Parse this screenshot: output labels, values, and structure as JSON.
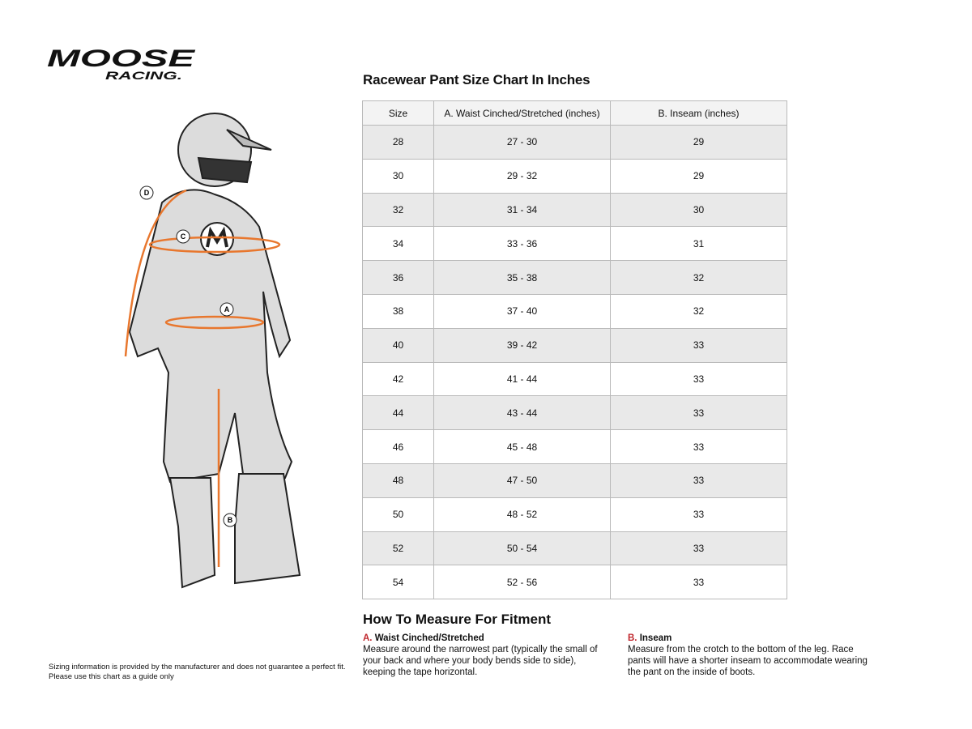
{
  "brand": {
    "logo_text": "MOOSE",
    "logo_subtext": "RACING."
  },
  "figure": {
    "markers": [
      "A",
      "B",
      "C",
      "D"
    ],
    "accent": "#e8772e"
  },
  "title": "Racewear Pant Size Chart In Inches",
  "table": {
    "headers": [
      "Size",
      "A. Waist Cinched/Stretched (inches)",
      "B. Inseam (inches)"
    ],
    "rows": [
      [
        "28",
        "27 - 30",
        "29"
      ],
      [
        "30",
        "29 - 32",
        "29"
      ],
      [
        "32",
        "31 - 34",
        "30"
      ],
      [
        "34",
        "33 - 36",
        "31"
      ],
      [
        "36",
        "35 - 38",
        "32"
      ],
      [
        "38",
        "37 - 40",
        "32"
      ],
      [
        "40",
        "39 - 42",
        "33"
      ],
      [
        "42",
        "41 - 44",
        "33"
      ],
      [
        "44",
        "43 - 44",
        "33"
      ],
      [
        "46",
        "45 - 48",
        "33"
      ],
      [
        "48",
        "47 - 50",
        "33"
      ],
      [
        "50",
        "48 - 52",
        "33"
      ],
      [
        "52",
        "50 - 54",
        "33"
      ],
      [
        "54",
        "52 - 56",
        "33"
      ]
    ]
  },
  "howto": {
    "title": "How To Measure For Fitment",
    "a": {
      "letter": "A.",
      "label": "Waist Cinched/Stretched",
      "text": "Measure around the narrowest part (typically the small of your back and where your body bends side to side), keeping the tape horizontal."
    },
    "b": {
      "letter": "B.",
      "label": "Inseam",
      "text": "Measure from the crotch to the bottom of the leg. Race pants will have a shorter inseam to accommodate wearing the pant on the inside of boots."
    }
  },
  "note": {
    "line1": "Sizing information is provided by the manufacturer and does not guarantee a perfect fit.",
    "line2": "Please use this chart as a guide only"
  },
  "colors": {
    "accent_red": "#c0272d",
    "row_gray": "#e9e9e9",
    "orange": "#e8772e"
  }
}
